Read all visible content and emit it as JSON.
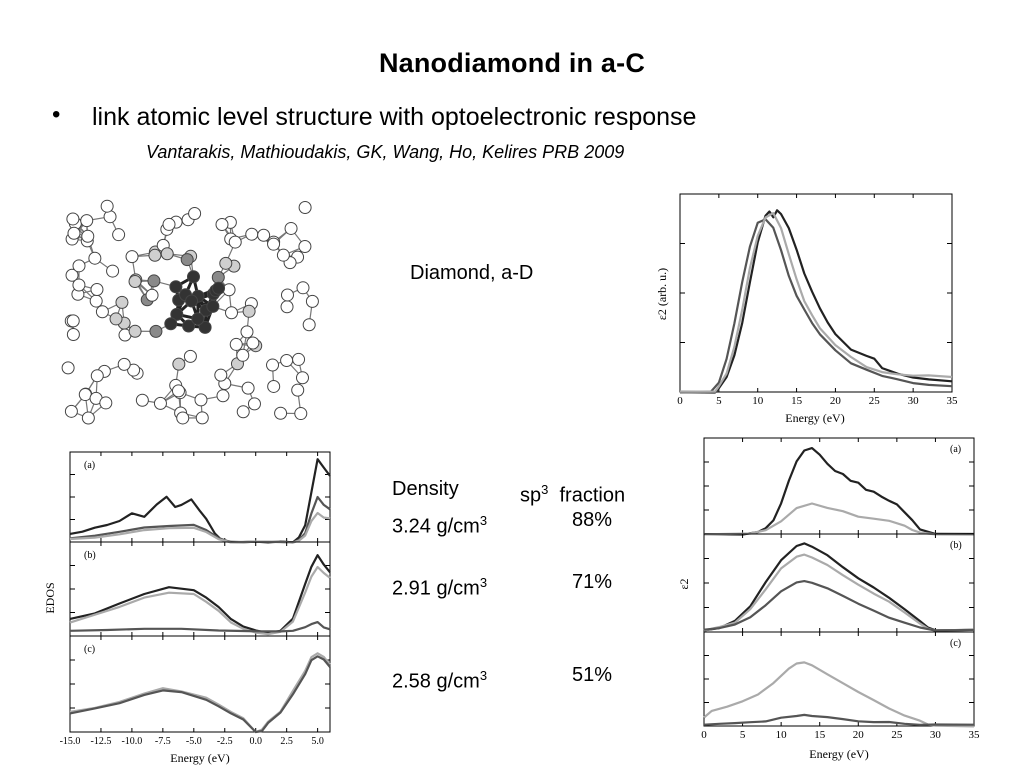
{
  "title": "Nanodiamond in a-C",
  "bullet": {
    "marker": "•",
    "text": "link atomic level structure with optoelectronic response"
  },
  "citation": "Vantarakis, Mathioudakis, GK, Wang, Ho, Kelires PRB 2009",
  "label_diamond": "Diamond, a-D",
  "table": {
    "header": {
      "density": "Density",
      "sp": "sp",
      "sup": "3",
      "fraction": "fraction"
    },
    "rows": [
      {
        "density": "3.24 g/cm",
        "sup": "3",
        "fraction": "88%"
      },
      {
        "density": "2.91 g/cm",
        "sup": "3",
        "fraction": "71%"
      },
      {
        "density": "2.58 g/cm",
        "sup": "3",
        "fraction": "51%"
      }
    ]
  },
  "colors": {
    "dark": "#222222",
    "mid": "#555555",
    "light": "#aaaaaa"
  },
  "chart_data": [
    {
      "id": "eps2-diamond",
      "type": "line",
      "xlabel": "Energy  (eV)",
      "ylabel": "ε2  (arb. u.)",
      "xlim": [
        0,
        35
      ],
      "xticks": [
        0,
        5,
        10,
        15,
        20,
        25,
        30,
        35
      ],
      "series": [
        {
          "color": "#222222",
          "x": [
            0,
            4.5,
            5,
            6,
            7,
            8,
            9,
            10,
            11,
            11.5,
            12,
            12.5,
            13,
            14,
            15,
            16,
            17,
            18,
            19,
            20,
            22,
            24,
            25,
            26,
            28,
            30,
            32,
            35
          ],
          "y": [
            0,
            0,
            0.02,
            0.08,
            0.2,
            0.38,
            0.6,
            0.82,
            0.97,
            0.99,
            0.96,
            1.0,
            0.98,
            0.9,
            0.78,
            0.65,
            0.55,
            0.46,
            0.38,
            0.32,
            0.23,
            0.2,
            0.18,
            0.13,
            0.1,
            0.08,
            0.07,
            0.06
          ]
        },
        {
          "color": "#555555",
          "x": [
            0,
            4,
            5,
            6,
            7,
            8,
            9,
            10,
            11,
            12,
            13,
            14,
            15,
            16,
            17,
            18,
            20,
            22,
            24,
            26,
            28,
            30,
            32,
            35
          ],
          "y": [
            0,
            0,
            0.05,
            0.18,
            0.38,
            0.6,
            0.8,
            0.93,
            0.95,
            0.9,
            0.78,
            0.64,
            0.53,
            0.45,
            0.38,
            0.32,
            0.23,
            0.16,
            0.12,
            0.09,
            0.07,
            0.05,
            0.04,
            0.03
          ]
        },
        {
          "color": "#aaaaaa",
          "x": [
            0,
            4.5,
            5,
            6,
            7,
            8,
            9,
            10,
            11,
            12,
            13,
            14,
            15,
            16,
            17,
            18,
            20,
            22,
            24,
            26,
            28,
            30,
            32,
            35
          ],
          "y": [
            0,
            0,
            0.03,
            0.1,
            0.25,
            0.45,
            0.68,
            0.86,
            0.96,
            0.98,
            0.9,
            0.76,
            0.62,
            0.5,
            0.42,
            0.35,
            0.26,
            0.19,
            0.14,
            0.11,
            0.1,
            0.09,
            0.09,
            0.08
          ]
        }
      ]
    },
    {
      "id": "edos",
      "type": "line",
      "xlabel": "Energy  (eV)",
      "ylabel": "EDOS",
      "xlim": [
        -15,
        6
      ],
      "xticks": [
        -15,
        -12.5,
        -10,
        -7.5,
        -5,
        -2.5,
        0,
        2.5,
        5
      ],
      "xticklabels": [
        "-15.0",
        "-12.5",
        "-10.0",
        "-7.5",
        "-5.0",
        "-2.5",
        "0.0",
        "2.5",
        "5.0"
      ],
      "panels": [
        {
          "label": "(a)",
          "series": [
            {
              "color": "#222222",
              "x": [
                -15,
                -14,
                -13,
                -12,
                -11,
                -10,
                -9,
                -8,
                -7.2,
                -6.5,
                -6,
                -5.2,
                -4.5,
                -4,
                -3.3,
                -2.8,
                -2,
                -1,
                0,
                1,
                2,
                3,
                3.5,
                4,
                4.5,
                5,
                5.5,
                6
              ],
              "y": [
                0.1,
                0.13,
                0.17,
                0.2,
                0.25,
                0.35,
                0.3,
                0.45,
                0.55,
                0.42,
                0.45,
                0.52,
                0.38,
                0.28,
                0.1,
                0.03,
                0.0,
                0.0,
                0.0,
                0.0,
                0.0,
                0.0,
                0.05,
                0.2,
                0.6,
                1.0,
                0.9,
                0.8
              ]
            },
            {
              "color": "#555555",
              "x": [
                -15,
                -13,
                -11,
                -9,
                -7,
                -5,
                -4,
                -3,
                -2,
                0,
                2,
                3,
                3.5,
                4,
                4.5,
                5,
                5.5,
                6
              ],
              "y": [
                0.05,
                0.07,
                0.12,
                0.17,
                0.2,
                0.2,
                0.15,
                0.05,
                0.0,
                0.0,
                0.0,
                0.0,
                0.03,
                0.1,
                0.35,
                0.55,
                0.45,
                0.4
              ]
            },
            {
              "color": "#aaaaaa",
              "x": [
                -15,
                -13,
                -11,
                -9,
                -7,
                -5,
                -4,
                -3,
                -2,
                0,
                2,
                3,
                3.5,
                4,
                4.5,
                5,
                5.5,
                6
              ],
              "y": [
                0.03,
                0.05,
                0.09,
                0.14,
                0.17,
                0.17,
                0.12,
                0.04,
                0.0,
                0.0,
                0.0,
                0.0,
                0.02,
                0.08,
                0.25,
                0.35,
                0.3,
                0.28
              ]
            }
          ]
        },
        {
          "label": "(b)",
          "series": [
            {
              "color": "#222222",
              "x": [
                -15,
                -13,
                -11,
                -9,
                -7,
                -5,
                -4,
                -3,
                -2,
                -1,
                0,
                1,
                2,
                3,
                4,
                4.5,
                5,
                5.5,
                6
              ],
              "y": [
                0.15,
                0.2,
                0.28,
                0.36,
                0.42,
                0.4,
                0.33,
                0.25,
                0.15,
                0.08,
                0.05,
                0.03,
                0.05,
                0.15,
                0.45,
                0.6,
                0.7,
                0.62,
                0.55
              ]
            },
            {
              "color": "#aaaaaa",
              "x": [
                -15,
                -13,
                -11,
                -9,
                -7,
                -5,
                -4,
                -3,
                -2,
                -1,
                0,
                1,
                2,
                3,
                4,
                4.5,
                5,
                5.5,
                6
              ],
              "y": [
                0.12,
                0.18,
                0.25,
                0.33,
                0.38,
                0.36,
                0.3,
                0.22,
                0.12,
                0.06,
                0.03,
                0.02,
                0.04,
                0.12,
                0.38,
                0.52,
                0.6,
                0.55,
                0.5
              ]
            },
            {
              "color": "#555555",
              "x": [
                -15,
                -12,
                -9,
                -6,
                -3,
                0,
                2,
                3,
                4,
                4.5,
                5,
                5.5,
                6
              ],
              "y": [
                0.04,
                0.05,
                0.06,
                0.06,
                0.05,
                0.04,
                0.04,
                0.05,
                0.08,
                0.1,
                0.12,
                0.08,
                0.06
              ]
            }
          ]
        },
        {
          "label": "(c)",
          "series": [
            {
              "color": "#aaaaaa",
              "x": [
                -15,
                -13,
                -11,
                -9,
                -7.5,
                -6,
                -4,
                -3,
                -2,
                -1,
                0,
                0.5,
                1,
                2,
                3,
                4,
                4.5,
                5,
                5.5,
                6
              ],
              "y": [
                0.15,
                0.18,
                0.22,
                0.28,
                0.32,
                0.3,
                0.25,
                0.2,
                0.15,
                0.1,
                0.0,
                0.02,
                0.08,
                0.15,
                0.3,
                0.45,
                0.55,
                0.58,
                0.55,
                0.5
              ]
            },
            {
              "color": "#555555",
              "x": [
                -15,
                -13,
                -11,
                -9,
                -7.5,
                -6,
                -4,
                -3,
                -2,
                -1,
                0,
                0.5,
                1,
                2,
                3,
                4,
                4.5,
                5,
                5.5,
                6
              ],
              "y": [
                0.14,
                0.17,
                0.21,
                0.27,
                0.31,
                0.29,
                0.24,
                0.19,
                0.14,
                0.09,
                0.0,
                0.01,
                0.07,
                0.14,
                0.28,
                0.43,
                0.53,
                0.56,
                0.53,
                0.48
              ]
            }
          ]
        }
      ]
    },
    {
      "id": "eps2-amorphous",
      "type": "line",
      "xlabel": "Energy  (eV)",
      "ylabel": "ε2",
      "xlim": [
        0,
        35
      ],
      "xticks": [
        0,
        5,
        10,
        15,
        20,
        25,
        30,
        35
      ],
      "panels": [
        {
          "label": "(a)",
          "series": [
            {
              "color": "#222222",
              "x": [
                0,
                5,
                7,
                8,
                9,
                10,
                11,
                12,
                13,
                14,
                15,
                16,
                17,
                18,
                19,
                20,
                21,
                22,
                23,
                24,
                25,
                26,
                27,
                28,
                30,
                35
              ],
              "y": [
                0,
                0,
                0.02,
                0.06,
                0.15,
                0.35,
                0.6,
                0.82,
                0.95,
                0.97,
                0.9,
                0.8,
                0.72,
                0.68,
                0.6,
                0.58,
                0.5,
                0.48,
                0.42,
                0.38,
                0.33,
                0.25,
                0.15,
                0.05,
                0,
                0
              ]
            },
            {
              "color": "#aaaaaa",
              "x": [
                0,
                6,
                8,
                10,
                12,
                14,
                16,
                18,
                20,
                22,
                24,
                26,
                27,
                28,
                30,
                35
              ],
              "y": [
                0,
                0,
                0.04,
                0.14,
                0.3,
                0.34,
                0.3,
                0.26,
                0.2,
                0.17,
                0.15,
                0.1,
                0.05,
                0.01,
                0,
                0
              ]
            }
          ]
        },
        {
          "label": "(b)",
          "series": [
            {
              "color": "#222222",
              "x": [
                0,
                2,
                4,
                6,
                8,
                10,
                12,
                13,
                14,
                16,
                18,
                20,
                22,
                24,
                26,
                28,
                29,
                30,
                35
              ],
              "y": [
                0.02,
                0.05,
                0.12,
                0.28,
                0.55,
                0.8,
                0.95,
                0.98,
                0.95,
                0.85,
                0.72,
                0.6,
                0.5,
                0.38,
                0.25,
                0.12,
                0.05,
                0.02,
                0.02
              ]
            },
            {
              "color": "#aaaaaa",
              "x": [
                0,
                2,
                4,
                6,
                8,
                10,
                12,
                13,
                14,
                16,
                18,
                20,
                22,
                24,
                26,
                28,
                29,
                30,
                35
              ],
              "y": [
                0.02,
                0.05,
                0.1,
                0.25,
                0.48,
                0.7,
                0.84,
                0.86,
                0.83,
                0.74,
                0.63,
                0.53,
                0.43,
                0.33,
                0.22,
                0.1,
                0.04,
                0.02,
                0.02
              ]
            },
            {
              "color": "#555555",
              "x": [
                0,
                2,
                4,
                6,
                8,
                10,
                12,
                13,
                14,
                16,
                18,
                20,
                22,
                24,
                26,
                28,
                30,
                35
              ],
              "y": [
                0.02,
                0.04,
                0.08,
                0.16,
                0.3,
                0.45,
                0.55,
                0.57,
                0.55,
                0.48,
                0.4,
                0.32,
                0.24,
                0.16,
                0.1,
                0.05,
                0.02,
                0.02
              ]
            }
          ]
        },
        {
          "label": "(c)",
          "series": [
            {
              "color": "#aaaaaa",
              "x": [
                0,
                1,
                3,
                5,
                7,
                9,
                11,
                12,
                13,
                14,
                16,
                18,
                20,
                22,
                24,
                26,
                28,
                29,
                30,
                35
              ],
              "y": [
                0.1,
                0.18,
                0.22,
                0.28,
                0.36,
                0.5,
                0.66,
                0.72,
                0.74,
                0.7,
                0.6,
                0.5,
                0.4,
                0.3,
                0.2,
                0.12,
                0.06,
                0.02,
                0,
                0
              ]
            },
            {
              "color": "#555555",
              "x": [
                0,
                2,
                4,
                6,
                8,
                10,
                12,
                13,
                14,
                16,
                18,
                20,
                22,
                24,
                26,
                28,
                30,
                35
              ],
              "y": [
                0.02,
                0.02,
                0.03,
                0.04,
                0.06,
                0.09,
                0.12,
                0.13,
                0.12,
                0.1,
                0.08,
                0.06,
                0.05,
                0.04,
                0.03,
                0.02,
                0.02,
                0.02
              ]
            }
          ]
        }
      ]
    }
  ]
}
